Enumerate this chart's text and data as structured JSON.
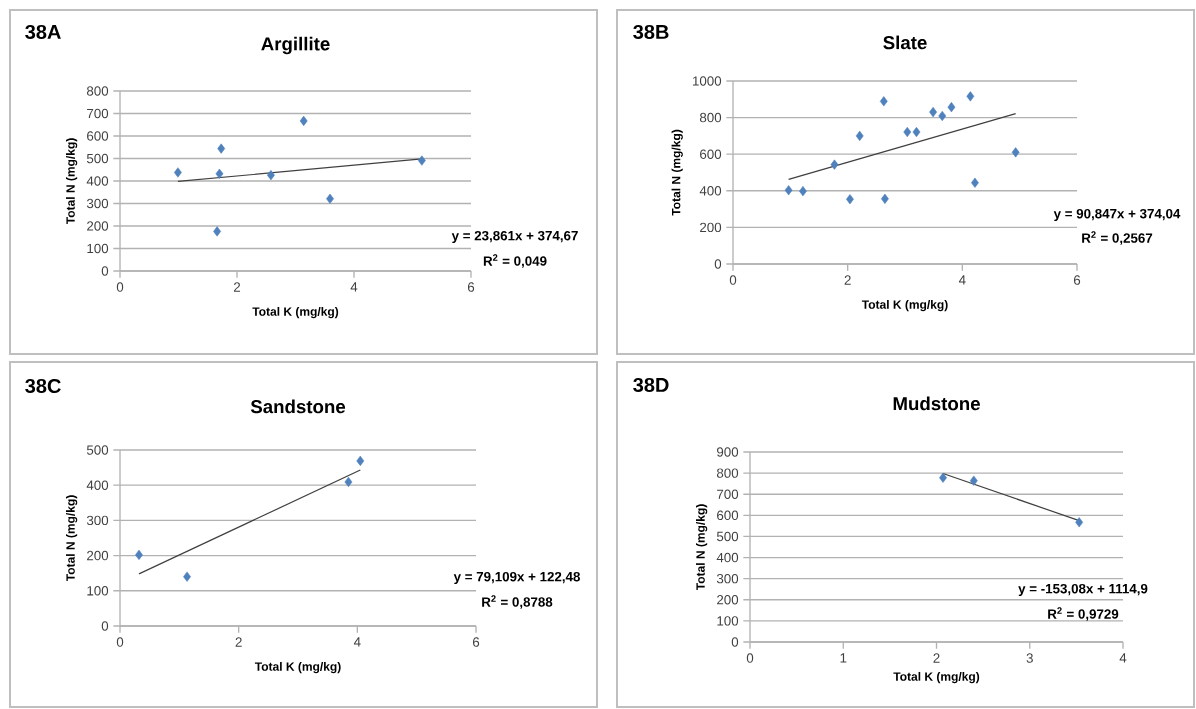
{
  "chart_data": [
    {
      "type": "scatter",
      "title": "Argillite",
      "xlabel": "Total K (mg/kg)",
      "ylabel": "Total N (mg/kg)",
      "xlim": [
        0,
        6
      ],
      "ylim": [
        0,
        800
      ],
      "xticks": [
        0,
        2,
        4,
        6
      ],
      "yticks": [
        0,
        100,
        200,
        300,
        400,
        500,
        600,
        700,
        800
      ],
      "grid": "y",
      "marker": "diamond",
      "annotations": [
        "38A",
        "y = 23,861x + 374,67",
        "R$^{2}$ = 0,049"
      ],
      "series": [
        {
          "color": "#4f81bd",
          "x": [
            0.99,
            1.73,
            1.7,
            2.58,
            3.14,
            3.59,
            1.66,
            5.16
          ],
          "values": [
            438,
            544,
            432,
            426,
            667,
            321,
            176,
            491
          ]
        },
        {
          "type": "line",
          "marker": "none",
          "color": "#404040",
          "x": [
            0.99,
            5.16
          ],
          "values": [
            398,
            498
          ]
        }
      ]
    },
    {
      "type": "scatter",
      "title": "Slate",
      "xlabel": "Total K (mg/kg)",
      "ylabel": "Total N (mg/kg)",
      "xlim": [
        0,
        6
      ],
      "ylim": [
        0,
        1000
      ],
      "xticks": [
        0,
        2,
        4,
        6
      ],
      "yticks": [
        0,
        200,
        400,
        600,
        800,
        1000
      ],
      "grid": "y",
      "marker": "diamond",
      "annotations": [
        "38B",
        "y = 90,847x + 374,04",
        "R$^{2}$ = 0,2567"
      ],
      "series": [
        {
          "color": "#4f81bd",
          "x": [
            0.97,
            1.22,
            1.77,
            2.04,
            2.21,
            2.63,
            2.65,
            3.04,
            3.2,
            3.49,
            3.65,
            3.81,
            4.14,
            4.22,
            4.93
          ],
          "values": [
            403,
            398,
            543,
            354,
            700,
            889,
            356,
            721,
            721,
            830,
            809,
            857,
            916,
            444,
            610
          ]
        },
        {
          "type": "line",
          "marker": "none",
          "color": "#404040",
          "x": [
            0.97,
            4.93
          ],
          "values": [
            462,
            822
          ]
        }
      ]
    },
    {
      "type": "scatter",
      "title": "Sandstone",
      "xlabel": "Total K (mg/kg)",
      "ylabel": "Total N (mg/kg)",
      "xlim": [
        0,
        6
      ],
      "ylim": [
        0,
        500
      ],
      "xticks": [
        0,
        2,
        4,
        6
      ],
      "yticks": [
        0,
        100,
        200,
        300,
        400,
        500
      ],
      "grid": "y",
      "marker": "diamond",
      "annotations": [
        "38C",
        "y = 79,109x + 122,48",
        "R$^{2}$ = 0,8788"
      ],
      "series": [
        {
          "color": "#4f81bd",
          "x": [
            0.32,
            1.13,
            3.85,
            4.05
          ],
          "values": [
            202,
            140,
            409,
            469
          ]
        },
        {
          "type": "line",
          "marker": "none",
          "color": "#404040",
          "x": [
            0.32,
            4.05
          ],
          "values": [
            148,
            443
          ]
        }
      ]
    },
    {
      "type": "scatter",
      "title": "Mudstone",
      "xlabel": "Total K (mg/kg)",
      "ylabel": "Total N (mg/kg)",
      "xlim": [
        0,
        4
      ],
      "ylim": [
        0,
        900
      ],
      "xticks": [
        0,
        1,
        2,
        3,
        4
      ],
      "yticks": [
        0,
        100,
        200,
        300,
        400,
        500,
        600,
        700,
        800,
        900
      ],
      "grid": "y",
      "marker": "diamond",
      "annotations": [
        "38D",
        "y = -153,08x + 1114,9",
        "R$^{2}$ = 0,9729"
      ],
      "series": [
        {
          "color": "#4f81bd",
          "x": [
            2.07,
            2.4,
            3.53
          ],
          "values": [
            778,
            764,
            567
          ]
        },
        {
          "type": "line",
          "marker": "none",
          "color": "#404040",
          "x": [
            2.07,
            3.53
          ],
          "values": [
            798,
            575
          ]
        }
      ]
    }
  ]
}
